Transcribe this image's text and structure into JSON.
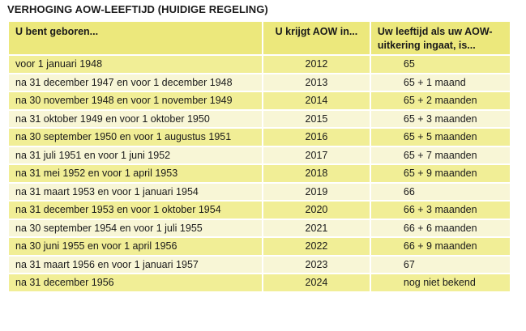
{
  "title": "VERHOGING AOW-LEEFTIJD (HUIDIGE REGELING)",
  "table": {
    "headers": [
      "U bent geboren...",
      "U krijgt AOW in...",
      "Uw leeftijd als uw AOW-uitkering ingaat, is..."
    ],
    "rows": [
      {
        "born": "voor 1 januari 1948",
        "year": "2012",
        "age": "65"
      },
      {
        "born": "na 31 december 1947 en voor 1 december 1948",
        "year": "2013",
        "age": "65 + 1 maand"
      },
      {
        "born": "na 30 november 1948 en voor 1 november 1949",
        "year": "2014",
        "age": "65 + 2 maanden"
      },
      {
        "born": "na 31 oktober 1949 en voor 1 oktober 1950",
        "year": "2015",
        "age": "65 + 3 maanden"
      },
      {
        "born": "na 30 september 1950 en voor 1 augustus 1951",
        "year": "2016",
        "age": "65 + 5 maanden"
      },
      {
        "born": "na 31 juli 1951 en voor 1 juni 1952",
        "year": "2017",
        "age": "65 + 7 maanden"
      },
      {
        "born": "na 31 mei 1952 en voor 1 april 1953",
        "year": "2018",
        "age": "65 + 9 maanden"
      },
      {
        "born": "na 31 maart 1953 en voor 1 januari 1954",
        "year": "2019",
        "age": "66"
      },
      {
        "born": "na 31 december 1953 en voor 1 oktober 1954",
        "year": "2020",
        "age": "66 + 3 maanden"
      },
      {
        "born": "na 30 september 1954 en voor 1 juli 1955",
        "year": "2021",
        "age": "66 + 6 maanden"
      },
      {
        "born": "na 30 juni 1955 en voor 1 april 1956",
        "year": "2022",
        "age": "66 + 9 maanden"
      },
      {
        "born": "na 31 maart 1956 en voor 1 januari 1957",
        "year": "2023",
        "age": "67"
      },
      {
        "born": "na 31 december 1956",
        "year": "2024",
        "age": "nog niet bekend"
      }
    ]
  },
  "colors": {
    "header_bg": "#ece87c",
    "row_odd_bg": "#f1ee96",
    "row_even_bg": "#f8f6d6"
  }
}
